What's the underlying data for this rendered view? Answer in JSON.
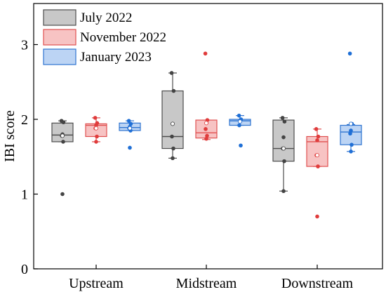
{
  "chart_data": {
    "type": "box",
    "title": "",
    "xlabel": "",
    "ylabel": "IBI score",
    "ylim": [
      0,
      3.3
    ],
    "yticks": [
      "0",
      "1",
      "2",
      "3"
    ],
    "categories": [
      "Upstream",
      "Midstream",
      "Downstream"
    ],
    "legend_position": "top-left",
    "series": [
      {
        "name": "July 2022",
        "edge_color": "#4d4d4d",
        "fill_color": "#c8c8c8",
        "point_color": "#444444",
        "boxes": [
          {
            "category": "Upstream",
            "q1": 1.7,
            "median": 1.79,
            "q3": 1.95,
            "whisker_low": 1.7,
            "whisker_high": 1.98,
            "mean": 1.78,
            "points": [
              1.98,
              1.96,
              1.8,
              1.78,
              1.7,
              1.0
            ]
          },
          {
            "category": "Midstream",
            "q1": 1.61,
            "median": 1.77,
            "q3": 2.38,
            "whisker_low": 1.48,
            "whisker_high": 2.62,
            "mean": 1.94,
            "points": [
              2.62,
              2.38,
              1.94,
              1.77,
              1.61,
              1.48
            ]
          },
          {
            "category": "Downstream",
            "q1": 1.44,
            "median": 1.61,
            "q3": 1.99,
            "whisker_low": 1.04,
            "whisker_high": 2.02,
            "mean": 1.61,
            "points": [
              2.02,
              1.97,
              1.76,
              1.61,
              1.44,
              1.04
            ]
          }
        ]
      },
      {
        "name": "November 2022",
        "edge_color": "#e05050",
        "fill_color": "#f7c3c3",
        "point_color": "#e03c3c",
        "boxes": [
          {
            "category": "Upstream",
            "q1": 1.77,
            "median": 1.92,
            "q3": 1.94,
            "whisker_low": 1.7,
            "whisker_high": 2.02,
            "mean": 1.88,
            "points": [
              2.02,
              1.95,
              1.92,
              1.88,
              1.77,
              1.7
            ]
          },
          {
            "category": "Midstream",
            "q1": 1.75,
            "median": 1.82,
            "q3": 1.99,
            "whisker_low": 1.73,
            "whisker_high": 1.99,
            "mean": 1.95,
            "points": [
              2.88,
              1.99,
              1.95,
              1.87,
              1.78,
              1.74
            ]
          },
          {
            "category": "Downstream",
            "q1": 1.37,
            "median": 1.7,
            "q3": 1.77,
            "whisker_low": 1.37,
            "whisker_high": 1.87,
            "mean": 1.52,
            "points": [
              1.87,
              1.77,
              1.72,
              1.52,
              1.37,
              0.7
            ]
          }
        ]
      },
      {
        "name": "January 2023",
        "edge_color": "#2f74d0",
        "fill_color": "#bcd4f4",
        "point_color": "#1f6fd6",
        "boxes": [
          {
            "category": "Upstream",
            "q1": 1.85,
            "median": 1.89,
            "q3": 1.95,
            "whisker_low": 1.85,
            "whisker_high": 1.98,
            "mean": 1.88,
            "points": [
              1.98,
              1.94,
              1.9,
              1.88,
              1.85,
              1.62
            ]
          },
          {
            "category": "Midstream",
            "q1": 1.92,
            "median": 1.98,
            "q3": 2.0,
            "whisker_low": 1.92,
            "whisker_high": 2.05,
            "mean": 1.97,
            "points": [
              2.05,
              2.0,
              1.98,
              1.92,
              1.65
            ]
          },
          {
            "category": "Downstream",
            "q1": 1.66,
            "median": 1.83,
            "q3": 1.92,
            "whisker_low": 1.57,
            "whisker_high": 1.93,
            "mean": 1.94,
            "points": [
              2.88,
              1.94,
              1.85,
              1.81,
              1.66,
              1.57
            ]
          }
        ]
      }
    ]
  }
}
